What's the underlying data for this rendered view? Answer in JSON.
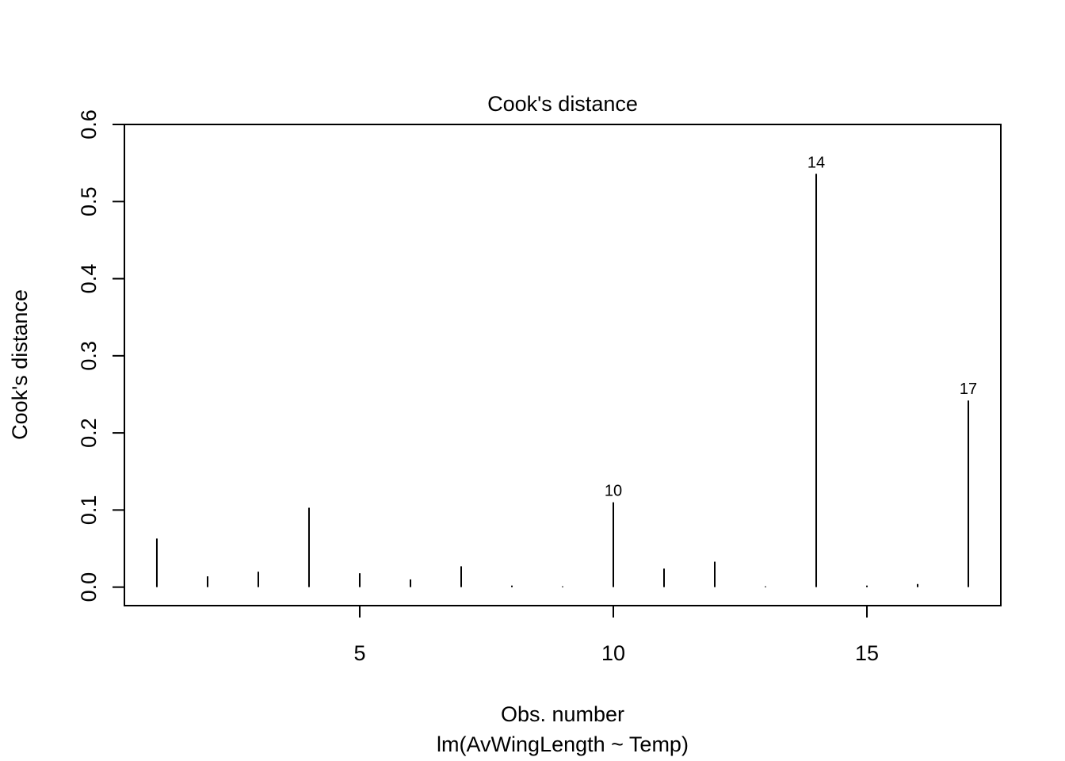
{
  "chart_data": {
    "type": "bar",
    "title": "Cook's distance",
    "xlabel": "Obs. number",
    "subtitle": "lm(AvWingLength ~ Temp)",
    "ylabel": "Cook's distance",
    "xlim": [
      0.36,
      17.64
    ],
    "ylim": [
      -0.024,
      0.6
    ],
    "x_ticks": [
      5,
      10,
      15
    ],
    "y_ticks": [
      0.0,
      0.1,
      0.2,
      0.3,
      0.4,
      0.5,
      0.6
    ],
    "x_tick_labels": [
      "5",
      "10",
      "15"
    ],
    "y_tick_labels": [
      "0.0",
      "0.1",
      "0.2",
      "0.3",
      "0.4",
      "0.5",
      "0.6"
    ],
    "x": [
      1,
      2,
      3,
      4,
      5,
      6,
      7,
      8,
      9,
      10,
      11,
      12,
      13,
      14,
      15,
      16,
      17
    ],
    "values": [
      0.063,
      0.014,
      0.02,
      0.103,
      0.018,
      0.01,
      0.027,
      0.002,
      0.001,
      0.11,
      0.024,
      0.033,
      0.001,
      0.536,
      0.002,
      0.004,
      0.242
    ],
    "labeled_points": [
      {
        "x": 10,
        "label": "10"
      },
      {
        "x": 14,
        "label": "14"
      },
      {
        "x": 17,
        "label": "17"
      }
    ],
    "grid": false,
    "legend": "none",
    "colors": {
      "line": "#000000",
      "background": "#ffffff"
    }
  }
}
